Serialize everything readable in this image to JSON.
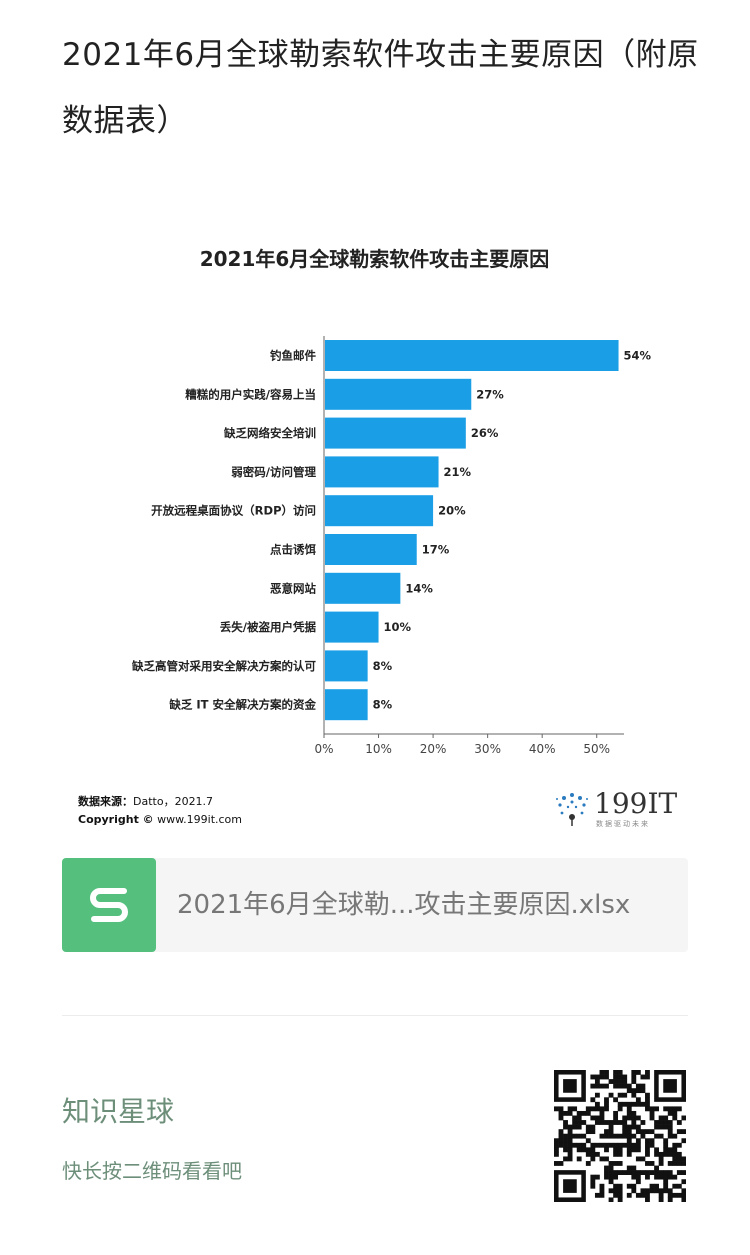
{
  "page": {
    "title": "2021年6月全球勒索软件攻击主要原因（附原数据表）"
  },
  "chart_data": {
    "type": "bar",
    "orientation": "horizontal",
    "title": "2021年6月全球勒索软件攻击主要原因",
    "categories": [
      "钓鱼邮件",
      "糟糕的用户实践/容易上当",
      "缺乏网络安全培训",
      "弱密码/访问管理",
      "开放远程桌面协议（RDP）访问",
      "点击诱饵",
      "恶意网站",
      "丢失/被盗用户凭据",
      "缺乏高管对采用安全解决方案的认可",
      "缺乏 IT 安全解决方案的资金"
    ],
    "values": [
      54,
      27,
      26,
      21,
      20,
      17,
      14,
      10,
      8,
      8
    ],
    "value_labels": [
      "54%",
      "27%",
      "26%",
      "21%",
      "20%",
      "17%",
      "14%",
      "10%",
      "8%",
      "8%"
    ],
    "xlim": [
      0,
      55
    ],
    "x_ticks": [
      0,
      10,
      20,
      30,
      40,
      50
    ],
    "x_tick_labels": [
      "0%",
      "10%",
      "20%",
      "30%",
      "40%",
      "50%"
    ],
    "bar_color": "#1a9ee6",
    "grid": false
  },
  "source": {
    "label": "数据来源：",
    "value": "Datto，2021.7",
    "copyright_label": "Copyright ©",
    "copyright_value": "www.199it.com"
  },
  "logo": {
    "text": "199IT",
    "sub": "数据驱动未来"
  },
  "attachment": {
    "icon": "spreadsheet-s-icon",
    "filename": "2021年6月全球勒...攻击主要原因.xlsx",
    "icon_color": "#55c07e"
  },
  "footer": {
    "title": "知识星球",
    "subtitle": "快长按二维码看看吧",
    "qr_icon": "qr-code-icon",
    "text_color": "#6d8f7a"
  }
}
